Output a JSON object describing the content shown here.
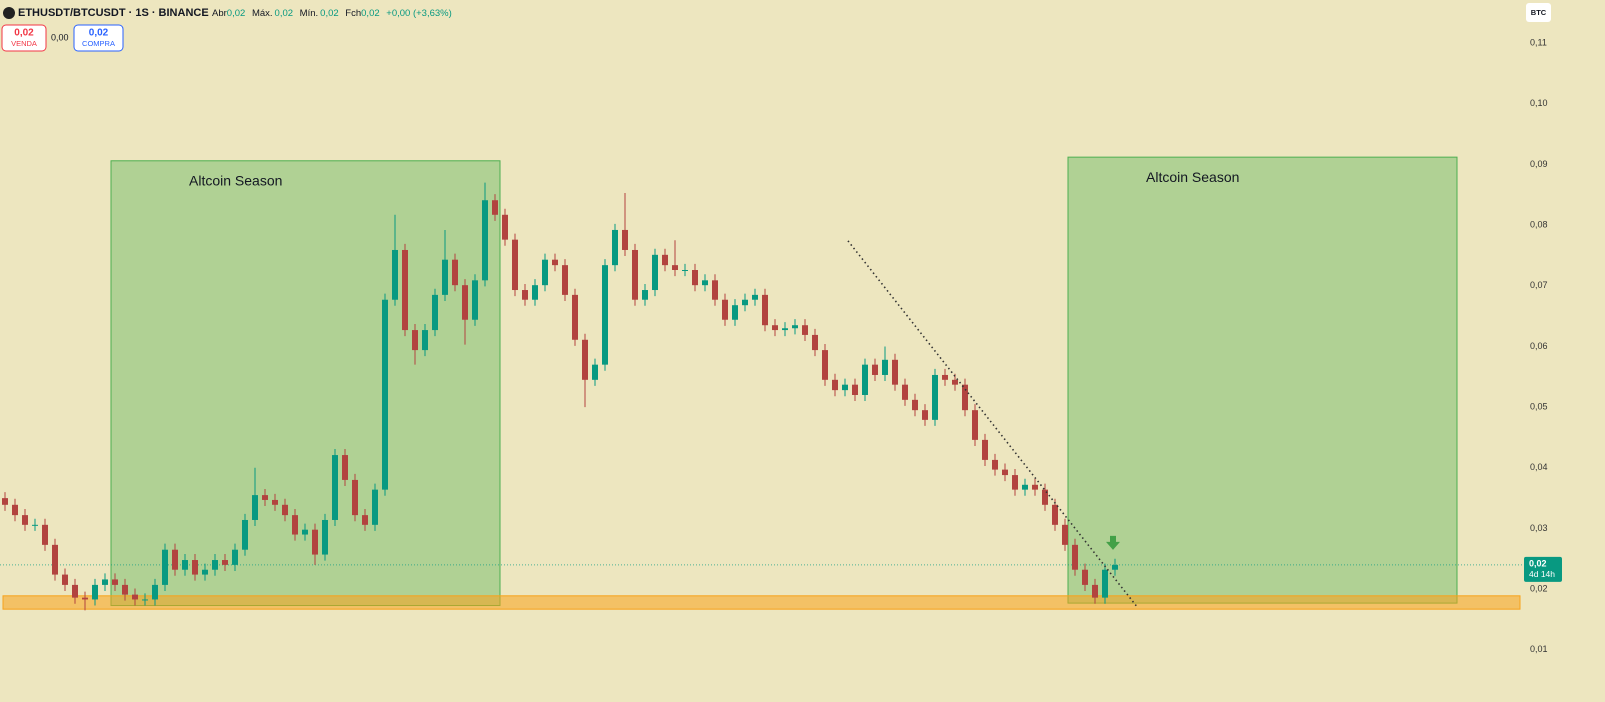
{
  "header": {
    "symbol": "ETHUSDT/BTCUSDT · 1S · BINANCE",
    "ohlc": [
      {
        "label": "Abr",
        "value": "0,02"
      },
      {
        "label": "Máx.",
        "value": "0,02"
      },
      {
        "label": "Mín.",
        "value": "0,02"
      },
      {
        "label": "Fch",
        "value": "0,02"
      }
    ],
    "change": "+0,00 (+3,63%)",
    "sell": {
      "price": "0,02",
      "label": "VENDA"
    },
    "spread": "0,00",
    "buy": {
      "price": "0,02",
      "label": "COMPRA"
    },
    "currency": "BTC"
  },
  "chart_data": {
    "type": "candlestick",
    "up_color": "#089981",
    "down_color": "#b2433f",
    "grid": false,
    "xlim": [
      -0.5,
      151.5
    ],
    "ylim": [
      0.0014,
      0.1171
    ],
    "yticks": [
      {
        "value": 0.11,
        "label": "0,11"
      },
      {
        "value": 0.1,
        "label": "0,10"
      },
      {
        "value": 0.09,
        "label": "0,09"
      },
      {
        "value": 0.08,
        "label": "0,08"
      },
      {
        "value": 0.07,
        "label": "0,07"
      },
      {
        "value": 0.06,
        "label": "0,06"
      },
      {
        "value": 0.05,
        "label": "0,05"
      },
      {
        "value": 0.04,
        "label": "0,04"
      },
      {
        "value": 0.03,
        "label": "0,03"
      },
      {
        "value": 0.02,
        "label": "0,02"
      },
      {
        "value": 0.01,
        "label": "0,01"
      }
    ],
    "open": [
      0.035,
      0.0339,
      0.0322,
      0.0306,
      0.0306,
      0.0273,
      0.0224,
      0.0207,
      0.0186,
      0.0183,
      0.0207,
      0.0216,
      0.0207,
      0.0191,
      0.0183,
      0.0183,
      0.0207,
      0.0265,
      0.0232,
      0.0248,
      0.0224,
      0.0232,
      0.0248,
      0.024,
      0.0265,
      0.0314,
      0.0355,
      0.0347,
      0.0339,
      0.0322,
      0.029,
      0.0298,
      0.0257,
      0.0314,
      0.0421,
      0.038,
      0.0322,
      0.0306,
      0.0364,
      0.0677,
      0.0759,
      0.0627,
      0.0594,
      0.0627,
      0.0685,
      0.0743,
      0.0701,
      0.0644,
      0.0709,
      0.0841,
      0.0817,
      0.0776,
      0.0693,
      0.0677,
      0.0701,
      0.0743,
      0.0734,
      0.0685,
      0.0611,
      0.0545,
      0.057,
      0.0734,
      0.0792,
      0.0759,
      0.0677,
      0.0693,
      0.0751,
      0.0734,
      0.0726,
      0.0726,
      0.0701,
      0.0709,
      0.0677,
      0.0644,
      0.0668,
      0.0677,
      0.0685,
      0.0635,
      0.0627,
      0.063,
      0.0635,
      0.0619,
      0.0594,
      0.0545,
      0.0528,
      0.0537,
      0.052,
      0.057,
      0.0553,
      0.0578,
      0.0537,
      0.0512,
      0.0495,
      0.0479,
      0.0553,
      0.0545,
      0.0537,
      0.0495,
      0.0446,
      0.0413,
      0.0397,
      0.0388,
      0.0364,
      0.0372,
      0.0364,
      0.0339,
      0.0306,
      0.0273,
      0.0232,
      0.0207,
      0.0186,
      0.0232
    ],
    "high": [
      0.036,
      0.0349,
      0.0332,
      0.0316,
      0.0316,
      0.0283,
      0.0234,
      0.0217,
      0.0196,
      0.0217,
      0.0226,
      0.0226,
      0.0217,
      0.0201,
      0.0193,
      0.0217,
      0.0275,
      0.0275,
      0.0258,
      0.0258,
      0.0242,
      0.0258,
      0.0258,
      0.0275,
      0.0324,
      0.04,
      0.0365,
      0.0357,
      0.0349,
      0.0332,
      0.0308,
      0.0308,
      0.0324,
      0.0431,
      0.0431,
      0.039,
      0.0332,
      0.0374,
      0.0687,
      0.0817,
      0.0769,
      0.0637,
      0.0637,
      0.0695,
      0.0792,
      0.0753,
      0.0711,
      0.0719,
      0.087,
      0.0851,
      0.0827,
      0.0786,
      0.0703,
      0.0711,
      0.0753,
      0.0753,
      0.0744,
      0.0695,
      0.0621,
      0.058,
      0.0744,
      0.0802,
      0.0853,
      0.0769,
      0.0703,
      0.0761,
      0.0761,
      0.0775,
      0.0736,
      0.0736,
      0.0719,
      0.0719,
      0.0687,
      0.0678,
      0.0687,
      0.0695,
      0.0695,
      0.0645,
      0.064,
      0.0645,
      0.0645,
      0.0629,
      0.0604,
      0.0555,
      0.0547,
      0.0547,
      0.058,
      0.058,
      0.06,
      0.0588,
      0.0547,
      0.0522,
      0.0505,
      0.0563,
      0.0563,
      0.0555,
      0.0547,
      0.0505,
      0.0456,
      0.0423,
      0.0407,
      0.0398,
      0.0382,
      0.0382,
      0.0374,
      0.0349,
      0.0316,
      0.0283,
      0.0242,
      0.0217,
      0.0242,
      0.025
    ],
    "low": [
      0.0329,
      0.0312,
      0.0296,
      0.0296,
      0.0263,
      0.0214,
      0.0197,
      0.0176,
      0.0165,
      0.0173,
      0.0197,
      0.0197,
      0.0181,
      0.0173,
      0.0173,
      0.0173,
      0.0197,
      0.0222,
      0.0222,
      0.0214,
      0.0214,
      0.0222,
      0.023,
      0.023,
      0.0255,
      0.0304,
      0.0337,
      0.0329,
      0.0312,
      0.028,
      0.028,
      0.024,
      0.0247,
      0.0304,
      0.037,
      0.0312,
      0.0296,
      0.0296,
      0.0354,
      0.0667,
      0.0617,
      0.057,
      0.0584,
      0.0617,
      0.0675,
      0.0691,
      0.0603,
      0.0634,
      0.0699,
      0.0807,
      0.0766,
      0.0683,
      0.0667,
      0.0667,
      0.0691,
      0.0724,
      0.0675,
      0.0601,
      0.05,
      0.0535,
      0.056,
      0.0724,
      0.0749,
      0.0667,
      0.0667,
      0.0683,
      0.0724,
      0.0716,
      0.0716,
      0.0691,
      0.0691,
      0.0667,
      0.0634,
      0.0634,
      0.0658,
      0.0667,
      0.0625,
      0.0617,
      0.0617,
      0.062,
      0.0609,
      0.0584,
      0.0535,
      0.0518,
      0.0518,
      0.051,
      0.051,
      0.0543,
      0.0543,
      0.0527,
      0.0502,
      0.0485,
      0.0469,
      0.0469,
      0.0535,
      0.0527,
      0.0485,
      0.0436,
      0.0403,
      0.0387,
      0.0378,
      0.0354,
      0.0354,
      0.0354,
      0.0329,
      0.0296,
      0.0263,
      0.0222,
      0.0197,
      0.0176,
      0.0176,
      0.0222
    ],
    "close": [
      0.0339,
      0.0322,
      0.0306,
      0.0306,
      0.0273,
      0.0224,
      0.0207,
      0.0186,
      0.0183,
      0.0207,
      0.0216,
      0.0207,
      0.0191,
      0.0183,
      0.0183,
      0.0207,
      0.0265,
      0.0232,
      0.0248,
      0.0224,
      0.0232,
      0.0248,
      0.024,
      0.0265,
      0.0314,
      0.0355,
      0.0347,
      0.0339,
      0.0322,
      0.029,
      0.0298,
      0.0257,
      0.0314,
      0.0421,
      0.038,
      0.0322,
      0.0306,
      0.0364,
      0.0677,
      0.0759,
      0.0627,
      0.0594,
      0.0627,
      0.0685,
      0.0743,
      0.0701,
      0.0644,
      0.0709,
      0.0841,
      0.0817,
      0.0776,
      0.0693,
      0.0677,
      0.0701,
      0.0743,
      0.0734,
      0.0685,
      0.0611,
      0.0545,
      0.057,
      0.0734,
      0.0792,
      0.0759,
      0.0677,
      0.0693,
      0.0751,
      0.0734,
      0.0726,
      0.0726,
      0.0701,
      0.0709,
      0.0677,
      0.0644,
      0.0668,
      0.0677,
      0.0685,
      0.0635,
      0.0627,
      0.063,
      0.0635,
      0.0619,
      0.0594,
      0.0545,
      0.0528,
      0.0537,
      0.052,
      0.057,
      0.0553,
      0.0578,
      0.0537,
      0.0512,
      0.0495,
      0.0479,
      0.0553,
      0.0545,
      0.0537,
      0.0495,
      0.0446,
      0.0413,
      0.0397,
      0.0388,
      0.0364,
      0.0372,
      0.0364,
      0.0339,
      0.0306,
      0.0273,
      0.0232,
      0.0207,
      0.0186,
      0.0232,
      0.024
    ],
    "boxes": [
      {
        "label": "Altcoin Season",
        "x": [
          10.6,
          49.5
        ],
        "y": [
          0.0173,
          0.0906
        ],
        "color": "#4caf50"
      },
      {
        "label": "Altcoin Season",
        "x": [
          106.3,
          145.2
        ],
        "y": [
          0.0177,
          0.0912
        ],
        "color": "#4caf50"
      }
    ],
    "zone": {
      "x": [
        -0.2,
        151.5
      ],
      "y": [
        0.0167,
        0.0189
      ],
      "color": "#f7a21b"
    },
    "trendline": {
      "x": [
        84.3,
        113.2
      ],
      "y": [
        0.0774,
        0.0171
      ]
    },
    "arrow": {
      "x": 110.8,
      "y": 0.0273,
      "color": "#43a047"
    },
    "last_price": {
      "value": 0.024,
      "label": "0,02"
    },
    "countdown": "4d 14h"
  }
}
